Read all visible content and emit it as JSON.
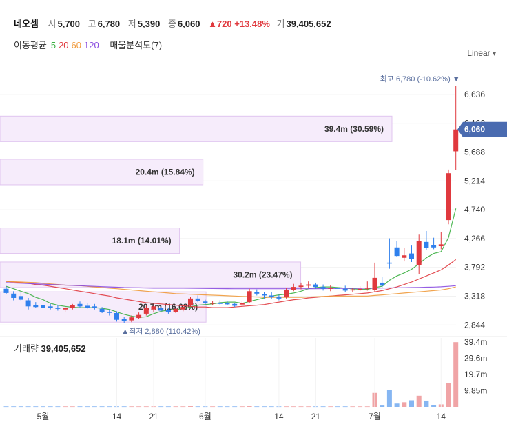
{
  "header": {
    "name": "네오셈",
    "open_label": "시",
    "open": "5,700",
    "high_label": "고",
    "high": "6,780",
    "low_label": "저",
    "low": "5,390",
    "close_label": "종",
    "close": "6,060",
    "change": "▲720 +13.48%",
    "volume_label": "거",
    "volume": "39,405,652",
    "ma_label": "이동평균",
    "ma_periods": [
      "5",
      "20",
      "60",
      "120"
    ],
    "volume_profile_label": "매물분석도(7)",
    "scale_mode": "Linear"
  },
  "chart_data": {
    "type": "candlestick",
    "price_axis_ticks": [
      "6,636",
      "6,162",
      "5,688",
      "5,214",
      "4,740",
      "4,266",
      "3,792",
      "3,318",
      "2,844"
    ],
    "price_ylim": [
      2700,
      7100
    ],
    "current_price": 6060,
    "current_price_label": "6,060",
    "high_marker": {
      "price": 6780,
      "label": "최고 6,780 (-10.62%)"
    },
    "low_marker": {
      "price": 2880,
      "label": "최저 2,880 (110.42%)"
    },
    "x_labels": [
      "5월",
      "14",
      "21",
      "6월",
      "14",
      "21",
      "7월",
      "14"
    ],
    "candles": [
      {
        "o": 3440,
        "h": 3480,
        "l": 3350,
        "c": 3370
      },
      {
        "o": 3360,
        "h": 3400,
        "l": 3250,
        "c": 3290
      },
      {
        "o": 3320,
        "h": 3380,
        "l": 3240,
        "c": 3260
      },
      {
        "o": 3250,
        "h": 3290,
        "l": 3100,
        "c": 3150
      },
      {
        "o": 3170,
        "h": 3220,
        "l": 3120,
        "c": 3140
      },
      {
        "o": 3170,
        "h": 3210,
        "l": 3110,
        "c": 3130
      },
      {
        "o": 3150,
        "h": 3190,
        "l": 3100,
        "c": 3120
      },
      {
        "o": 3130,
        "h": 3170,
        "l": 3080,
        "c": 3110
      },
      {
        "o": 3100,
        "h": 3140,
        "l": 3060,
        "c": 3120
      },
      {
        "o": 3120,
        "h": 3190,
        "l": 3100,
        "c": 3170
      },
      {
        "o": 3190,
        "h": 3230,
        "l": 3130,
        "c": 3150
      },
      {
        "o": 3160,
        "h": 3200,
        "l": 3110,
        "c": 3130
      },
      {
        "o": 3150,
        "h": 3190,
        "l": 3100,
        "c": 3120
      },
      {
        "o": 3110,
        "h": 3140,
        "l": 3040,
        "c": 3060
      },
      {
        "o": 3060,
        "h": 3100,
        "l": 3000,
        "c": 3050
      },
      {
        "o": 3040,
        "h": 3070,
        "l": 2900,
        "c": 2930
      },
      {
        "o": 2940,
        "h": 2980,
        "l": 2880,
        "c": 2910
      },
      {
        "o": 2920,
        "h": 3000,
        "l": 2890,
        "c": 2970
      },
      {
        "o": 2960,
        "h": 3050,
        "l": 2940,
        "c": 3010
      },
      {
        "o": 3030,
        "h": 3160,
        "l": 3000,
        "c": 3120
      },
      {
        "o": 3100,
        "h": 3180,
        "l": 3050,
        "c": 3150
      },
      {
        "o": 3130,
        "h": 3160,
        "l": 3050,
        "c": 3080
      },
      {
        "o": 3090,
        "h": 3130,
        "l": 3030,
        "c": 3060
      },
      {
        "o": 3060,
        "h": 3130,
        "l": 3040,
        "c": 3110
      },
      {
        "o": 3100,
        "h": 3160,
        "l": 3070,
        "c": 3140
      },
      {
        "o": 3170,
        "h": 3310,
        "l": 3150,
        "c": 3280
      },
      {
        "o": 3280,
        "h": 3330,
        "l": 3220,
        "c": 3240
      },
      {
        "o": 3230,
        "h": 3260,
        "l": 3180,
        "c": 3200
      },
      {
        "o": 3200,
        "h": 3240,
        "l": 3170,
        "c": 3210
      },
      {
        "o": 3210,
        "h": 3250,
        "l": 3180,
        "c": 3190
      },
      {
        "o": 3200,
        "h": 3230,
        "l": 3170,
        "c": 3190
      },
      {
        "o": 3190,
        "h": 3210,
        "l": 3140,
        "c": 3160
      },
      {
        "o": 3180,
        "h": 3230,
        "l": 3150,
        "c": 3200
      },
      {
        "o": 3220,
        "h": 3440,
        "l": 3200,
        "c": 3400
      },
      {
        "o": 3390,
        "h": 3430,
        "l": 3330,
        "c": 3360
      },
      {
        "o": 3350,
        "h": 3380,
        "l": 3280,
        "c": 3330
      },
      {
        "o": 3330,
        "h": 3380,
        "l": 3270,
        "c": 3300
      },
      {
        "o": 3300,
        "h": 3340,
        "l": 3250,
        "c": 3280
      },
      {
        "o": 3300,
        "h": 3450,
        "l": 3280,
        "c": 3420
      },
      {
        "o": 3420,
        "h": 3520,
        "l": 3400,
        "c": 3470
      },
      {
        "o": 3470,
        "h": 3540,
        "l": 3430,
        "c": 3490
      },
      {
        "o": 3490,
        "h": 3560,
        "l": 3450,
        "c": 3510
      },
      {
        "o": 3510,
        "h": 3540,
        "l": 3440,
        "c": 3470
      },
      {
        "o": 3470,
        "h": 3510,
        "l": 3410,
        "c": 3440
      },
      {
        "o": 3440,
        "h": 3500,
        "l": 3400,
        "c": 3460
      },
      {
        "o": 3460,
        "h": 3510,
        "l": 3420,
        "c": 3440
      },
      {
        "o": 3440,
        "h": 3490,
        "l": 3380,
        "c": 3410
      },
      {
        "o": 3420,
        "h": 3460,
        "l": 3380,
        "c": 3430
      },
      {
        "o": 3430,
        "h": 3480,
        "l": 3400,
        "c": 3440
      },
      {
        "o": 3440,
        "h": 3560,
        "l": 3410,
        "c": 3460
      },
      {
        "o": 3420,
        "h": 3870,
        "l": 3380,
        "c": 3620
      },
      {
        "o": 3540,
        "h": 3640,
        "l": 3460,
        "c": 3490
      },
      {
        "o": 3870,
        "h": 4270,
        "l": 3770,
        "c": 3860
      },
      {
        "o": 4120,
        "h": 4220,
        "l": 3960,
        "c": 3980
      },
      {
        "o": 3950,
        "h": 4110,
        "l": 3890,
        "c": 3990
      },
      {
        "o": 4020,
        "h": 4150,
        "l": 3880,
        "c": 3930
      },
      {
        "o": 3830,
        "h": 4330,
        "l": 3680,
        "c": 4220
      },
      {
        "o": 4210,
        "h": 4390,
        "l": 4080,
        "c": 4110
      },
      {
        "o": 4160,
        "h": 4280,
        "l": 4090,
        "c": 4120
      },
      {
        "o": 4140,
        "h": 4370,
        "l": 4090,
        "c": 4170
      },
      {
        "o": 4570,
        "h": 5400,
        "l": 4500,
        "c": 5340
      },
      {
        "o": 5700,
        "h": 6780,
        "l": 5390,
        "c": 6060
      }
    ],
    "moving_averages": [
      {
        "period": "5",
        "color": "#3cb043",
        "values": [
          3480,
          3440,
          3400,
          3360,
          3300,
          3260,
          3200,
          3170,
          3150,
          3135,
          3130,
          3130,
          3130,
          3120,
          3100,
          3060,
          3020,
          2990,
          2970,
          2980,
          3030,
          3070,
          3090,
          3100,
          3110,
          3140,
          3170,
          3180,
          3190,
          3210,
          3220,
          3220,
          3200,
          3230,
          3260,
          3290,
          3320,
          3340,
          3350,
          3370,
          3400,
          3440,
          3460,
          3470,
          3470,
          3460,
          3450,
          3440,
          3430,
          3430,
          3460,
          3480,
          3580,
          3650,
          3700,
          3760,
          3850,
          3950,
          4020,
          4050,
          4280,
          4760
        ]
      },
      {
        "period": "20",
        "color": "#e0393e",
        "values": [
          3560,
          3550,
          3540,
          3530,
          3510,
          3500,
          3480,
          3460,
          3440,
          3420,
          3400,
          3380,
          3360,
          3340,
          3320,
          3290,
          3270,
          3250,
          3230,
          3210,
          3200,
          3190,
          3180,
          3170,
          3160,
          3150,
          3140,
          3140,
          3130,
          3130,
          3130,
          3140,
          3150,
          3160,
          3170,
          3180,
          3200,
          3220,
          3240,
          3260,
          3270,
          3290,
          3300,
          3310,
          3320,
          3330,
          3340,
          3350,
          3360,
          3370,
          3390,
          3410,
          3440,
          3470,
          3510,
          3550,
          3600,
          3650,
          3700,
          3750,
          3830,
          3920
        ]
      },
      {
        "period": "60",
        "color": "#f09a3b",
        "values": [
          3560,
          3555,
          3550,
          3545,
          3540,
          3530,
          3520,
          3510,
          3500,
          3495,
          3490,
          3480,
          3470,
          3460,
          3450,
          3440,
          3430,
          3420,
          3410,
          3400,
          3390,
          3380,
          3370,
          3360,
          3355,
          3350,
          3345,
          3340,
          3335,
          3330,
          3325,
          3320,
          3315,
          3310,
          3305,
          3300,
          3300,
          3300,
          3300,
          3300,
          3300,
          3305,
          3310,
          3315,
          3320,
          3320,
          3320,
          3320,
          3320,
          3320,
          3330,
          3340,
          3350,
          3360,
          3370,
          3380,
          3390,
          3400,
          3410,
          3420,
          3440,
          3470
        ]
      },
      {
        "period": "120",
        "color": "#8a4de0",
        "values": [
          3540,
          3535,
          3530,
          3525,
          3520,
          3515,
          3510,
          3505,
          3500,
          3495,
          3490,
          3485,
          3480,
          3475,
          3470,
          3465,
          3460,
          3458,
          3455,
          3452,
          3450,
          3450,
          3450,
          3450,
          3450,
          3448,
          3446,
          3445,
          3444,
          3443,
          3442,
          3441,
          3440,
          3440,
          3440,
          3440,
          3440,
          3440,
          3440,
          3440,
          3440,
          3441,
          3442,
          3443,
          3444,
          3445,
          3446,
          3447,
          3448,
          3449,
          3450,
          3452,
          3454,
          3456,
          3458,
          3460,
          3462,
          3465,
          3468,
          3472,
          3480,
          3490
        ]
      }
    ],
    "volume_profile": [
      {
        "label": "39.4m (30.59%)",
        "price_from": 5860,
        "price_to": 6280,
        "percent": 30.59
      },
      {
        "label": "20.4m (15.84%)",
        "price_from": 5150,
        "price_to": 5570,
        "percent": 15.84
      },
      {
        "label": "18.1m (14.01%)",
        "price_from": 4020,
        "price_to": 4440,
        "percent": 14.01
      },
      {
        "label": "30.2m (23.47%)",
        "price_from": 3460,
        "price_to": 3880,
        "percent": 23.47
      },
      {
        "label": "20.7m (16.08%)",
        "price_from": 2890,
        "price_to": 3390,
        "percent": 16.08
      }
    ],
    "volume": {
      "label": "거래량",
      "value_label": "39,405,652",
      "axis_ticks": [
        "39.4m",
        "29.6m",
        "19.7m",
        "9.85m"
      ],
      "ylim": [
        0,
        42
      ],
      "values_m": [
        0.3,
        0.3,
        0.3,
        0.3,
        0.3,
        0.3,
        0.3,
        0.3,
        0.3,
        0.3,
        0.3,
        0.3,
        0.3,
        0.3,
        0.3,
        0.3,
        0.3,
        0.3,
        0.3,
        0.3,
        0.3,
        0.3,
        0.3,
        0.3,
        0.3,
        0.4,
        0.3,
        0.3,
        0.3,
        0.3,
        0.3,
        0.3,
        0.3,
        0.4,
        0.3,
        0.3,
        0.3,
        0.3,
        0.3,
        0.3,
        0.3,
        0.3,
        0.3,
        0.3,
        0.3,
        0.3,
        0.3,
        0.3,
        0.3,
        0.3,
        8.5,
        0.8,
        10.3,
        2.0,
        2.8,
        4.0,
        6.8,
        3.8,
        1.2,
        1.5,
        14.5,
        39.4
      ]
    }
  },
  "colors": {
    "up": "#e0393e",
    "down": "#2f80ed",
    "up_volume": "#f0a4a6",
    "down_volume": "#86b6f2",
    "volume_profile_fill": "#f6ecfb",
    "volume_profile_stroke": "#e0c4ef",
    "price_tag": "#4a6bb0"
  }
}
